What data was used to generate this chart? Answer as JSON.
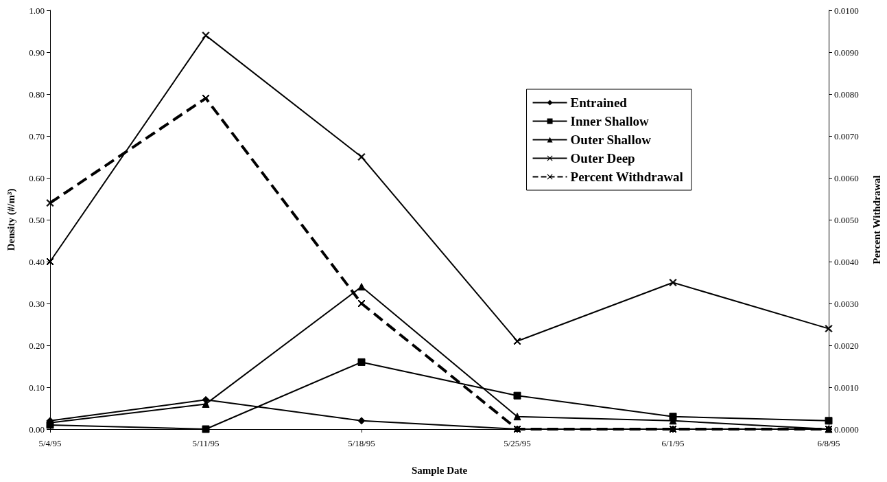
{
  "chart_data": {
    "type": "line",
    "xlabel": "Sample Date",
    "ylabel": "Density (#/m³)",
    "y2label": "Percent Withdrawal",
    "categories": [
      "5/4/95",
      "5/11/95",
      "5/18/95",
      "5/25/95",
      "6/1/95",
      "6/8/95"
    ],
    "series": [
      {
        "name": "Entrained",
        "color": "#000000",
        "marker": "diamond",
        "values": [
          0.02,
          0.07,
          0.02,
          0.0,
          0.0,
          0.0
        ]
      },
      {
        "name": "Inner Shallow",
        "color": "#000000",
        "marker": "square",
        "values": [
          0.01,
          0.0,
          0.16,
          0.08,
          0.03,
          0.02
        ]
      },
      {
        "name": "Outer Shallow",
        "color": "#000000",
        "marker": "triangle",
        "values": [
          0.015,
          0.06,
          0.34,
          0.03,
          0.02,
          0.0
        ]
      },
      {
        "name": "Outer Deep",
        "color": "#000000",
        "marker": "cross",
        "values": [
          0.4,
          0.94,
          0.65,
          0.21,
          0.35,
          0.24
        ]
      },
      {
        "name": "Percent Withdrawal",
        "color": "#000000",
        "marker": "cross",
        "line_style": "dashed",
        "axis": "y2",
        "values": [
          0.0054,
          0.0079,
          0.003,
          0.0,
          0.0,
          0.0
        ]
      }
    ],
    "ylim": [
      0,
      1
    ],
    "yticks": [
      {
        "value": 0,
        "label": "0.00"
      },
      {
        "value": 0.1,
        "label": "0.10"
      },
      {
        "value": 0.2,
        "label": "0.20"
      },
      {
        "value": 0.3,
        "label": "0.30"
      },
      {
        "value": 0.4,
        "label": "0.40"
      },
      {
        "value": 0.5,
        "label": "0.50"
      },
      {
        "value": 0.6,
        "label": "0.60"
      },
      {
        "value": 0.7,
        "label": "0.70"
      },
      {
        "value": 0.8,
        "label": "0.80"
      },
      {
        "value": 0.9,
        "label": "0.90"
      },
      {
        "value": 1,
        "label": "1.00"
      }
    ],
    "y2lim": [
      0,
      0.01
    ],
    "y2ticks": [
      {
        "value": 0,
        "label": "0.0000"
      },
      {
        "value": 0.001,
        "label": "0.0010"
      },
      {
        "value": 0.002,
        "label": "0.0020"
      },
      {
        "value": 0.003,
        "label": "0.0030"
      },
      {
        "value": 0.004,
        "label": "0.0040"
      },
      {
        "value": 0.005,
        "label": "0.0050"
      },
      {
        "value": 0.006,
        "label": "0.0060"
      },
      {
        "value": 0.007,
        "label": "0.0070"
      },
      {
        "value": 0.008,
        "label": "0.0080"
      },
      {
        "value": 0.009,
        "label": "0.0090"
      },
      {
        "value": 0.01,
        "label": "0.0100"
      }
    ],
    "grid": false,
    "legend": "right"
  }
}
